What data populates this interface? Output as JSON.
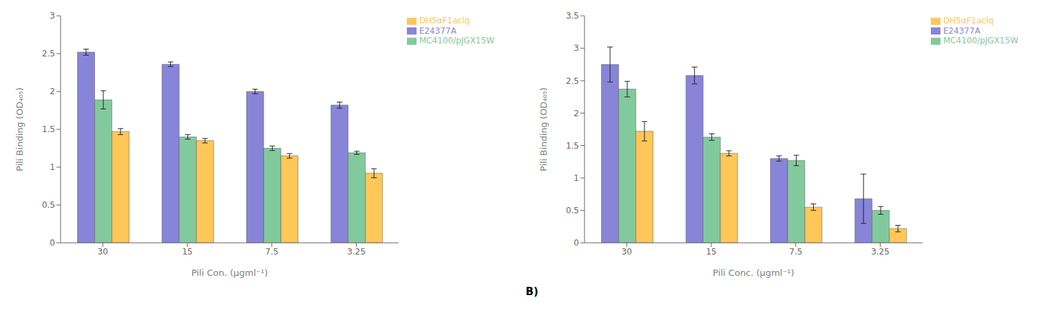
{
  "chart_data": [
    {
      "type": "bar",
      "categories": [
        "30",
        "15",
        "7.5",
        "3.25"
      ],
      "series": [
        {
          "name": "E24377A",
          "color": "#8884d8",
          "values": [
            2.52,
            2.36,
            2.0,
            1.82
          ],
          "errors": [
            0.04,
            0.03,
            0.03,
            0.04
          ]
        },
        {
          "name": "MC4100/pJGX15W",
          "color": "#82ca9d",
          "values": [
            1.89,
            1.4,
            1.25,
            1.19
          ],
          "errors": [
            0.12,
            0.03,
            0.03,
            0.02
          ]
        },
        {
          "name": "DH5αF1aclq",
          "color": "#ffc658",
          "values": [
            1.47,
            1.35,
            1.15,
            0.92
          ],
          "errors": [
            0.04,
            0.03,
            0.03,
            0.06
          ]
        }
      ],
      "xlabel": "Pili Con. (μgml⁻¹)",
      "ylabel": "Pili Binding (OD₄₀₅)",
      "ylim": [
        0,
        3.0
      ],
      "yticks": [
        0,
        0.5,
        1.0,
        1.5,
        2.0,
        2.5,
        3.0
      ],
      "legend": "upper right",
      "grid": false
    },
    {
      "type": "bar",
      "categories": [
        "30",
        "15",
        "7.5",
        "3.25"
      ],
      "series": [
        {
          "name": "E24377A",
          "color": "#8884d8",
          "values": [
            2.75,
            2.58,
            1.3,
            0.68
          ],
          "errors": [
            0.27,
            0.13,
            0.04,
            0.38
          ]
        },
        {
          "name": "MC4100/pJGX15W",
          "color": "#82ca9d",
          "values": [
            2.37,
            1.63,
            1.27,
            0.5
          ],
          "errors": [
            0.12,
            0.05,
            0.08,
            0.06
          ]
        },
        {
          "name": "DH5αF1aclq",
          "color": "#ffc658",
          "values": [
            1.72,
            1.38,
            0.55,
            0.22
          ],
          "errors": [
            0.15,
            0.04,
            0.05,
            0.05
          ]
        }
      ],
      "xlabel": "Pili Conc. (μgml⁻¹)",
      "ylabel": "Pili Binding (OD₄₀₅)",
      "ylim": [
        0,
        3.5
      ],
      "yticks": [
        0,
        0.5,
        1.0,
        1.5,
        2.0,
        2.5,
        3.0,
        3.5
      ],
      "legend": "upper right",
      "grid": false,
      "annotations": [
        "B)"
      ]
    }
  ]
}
